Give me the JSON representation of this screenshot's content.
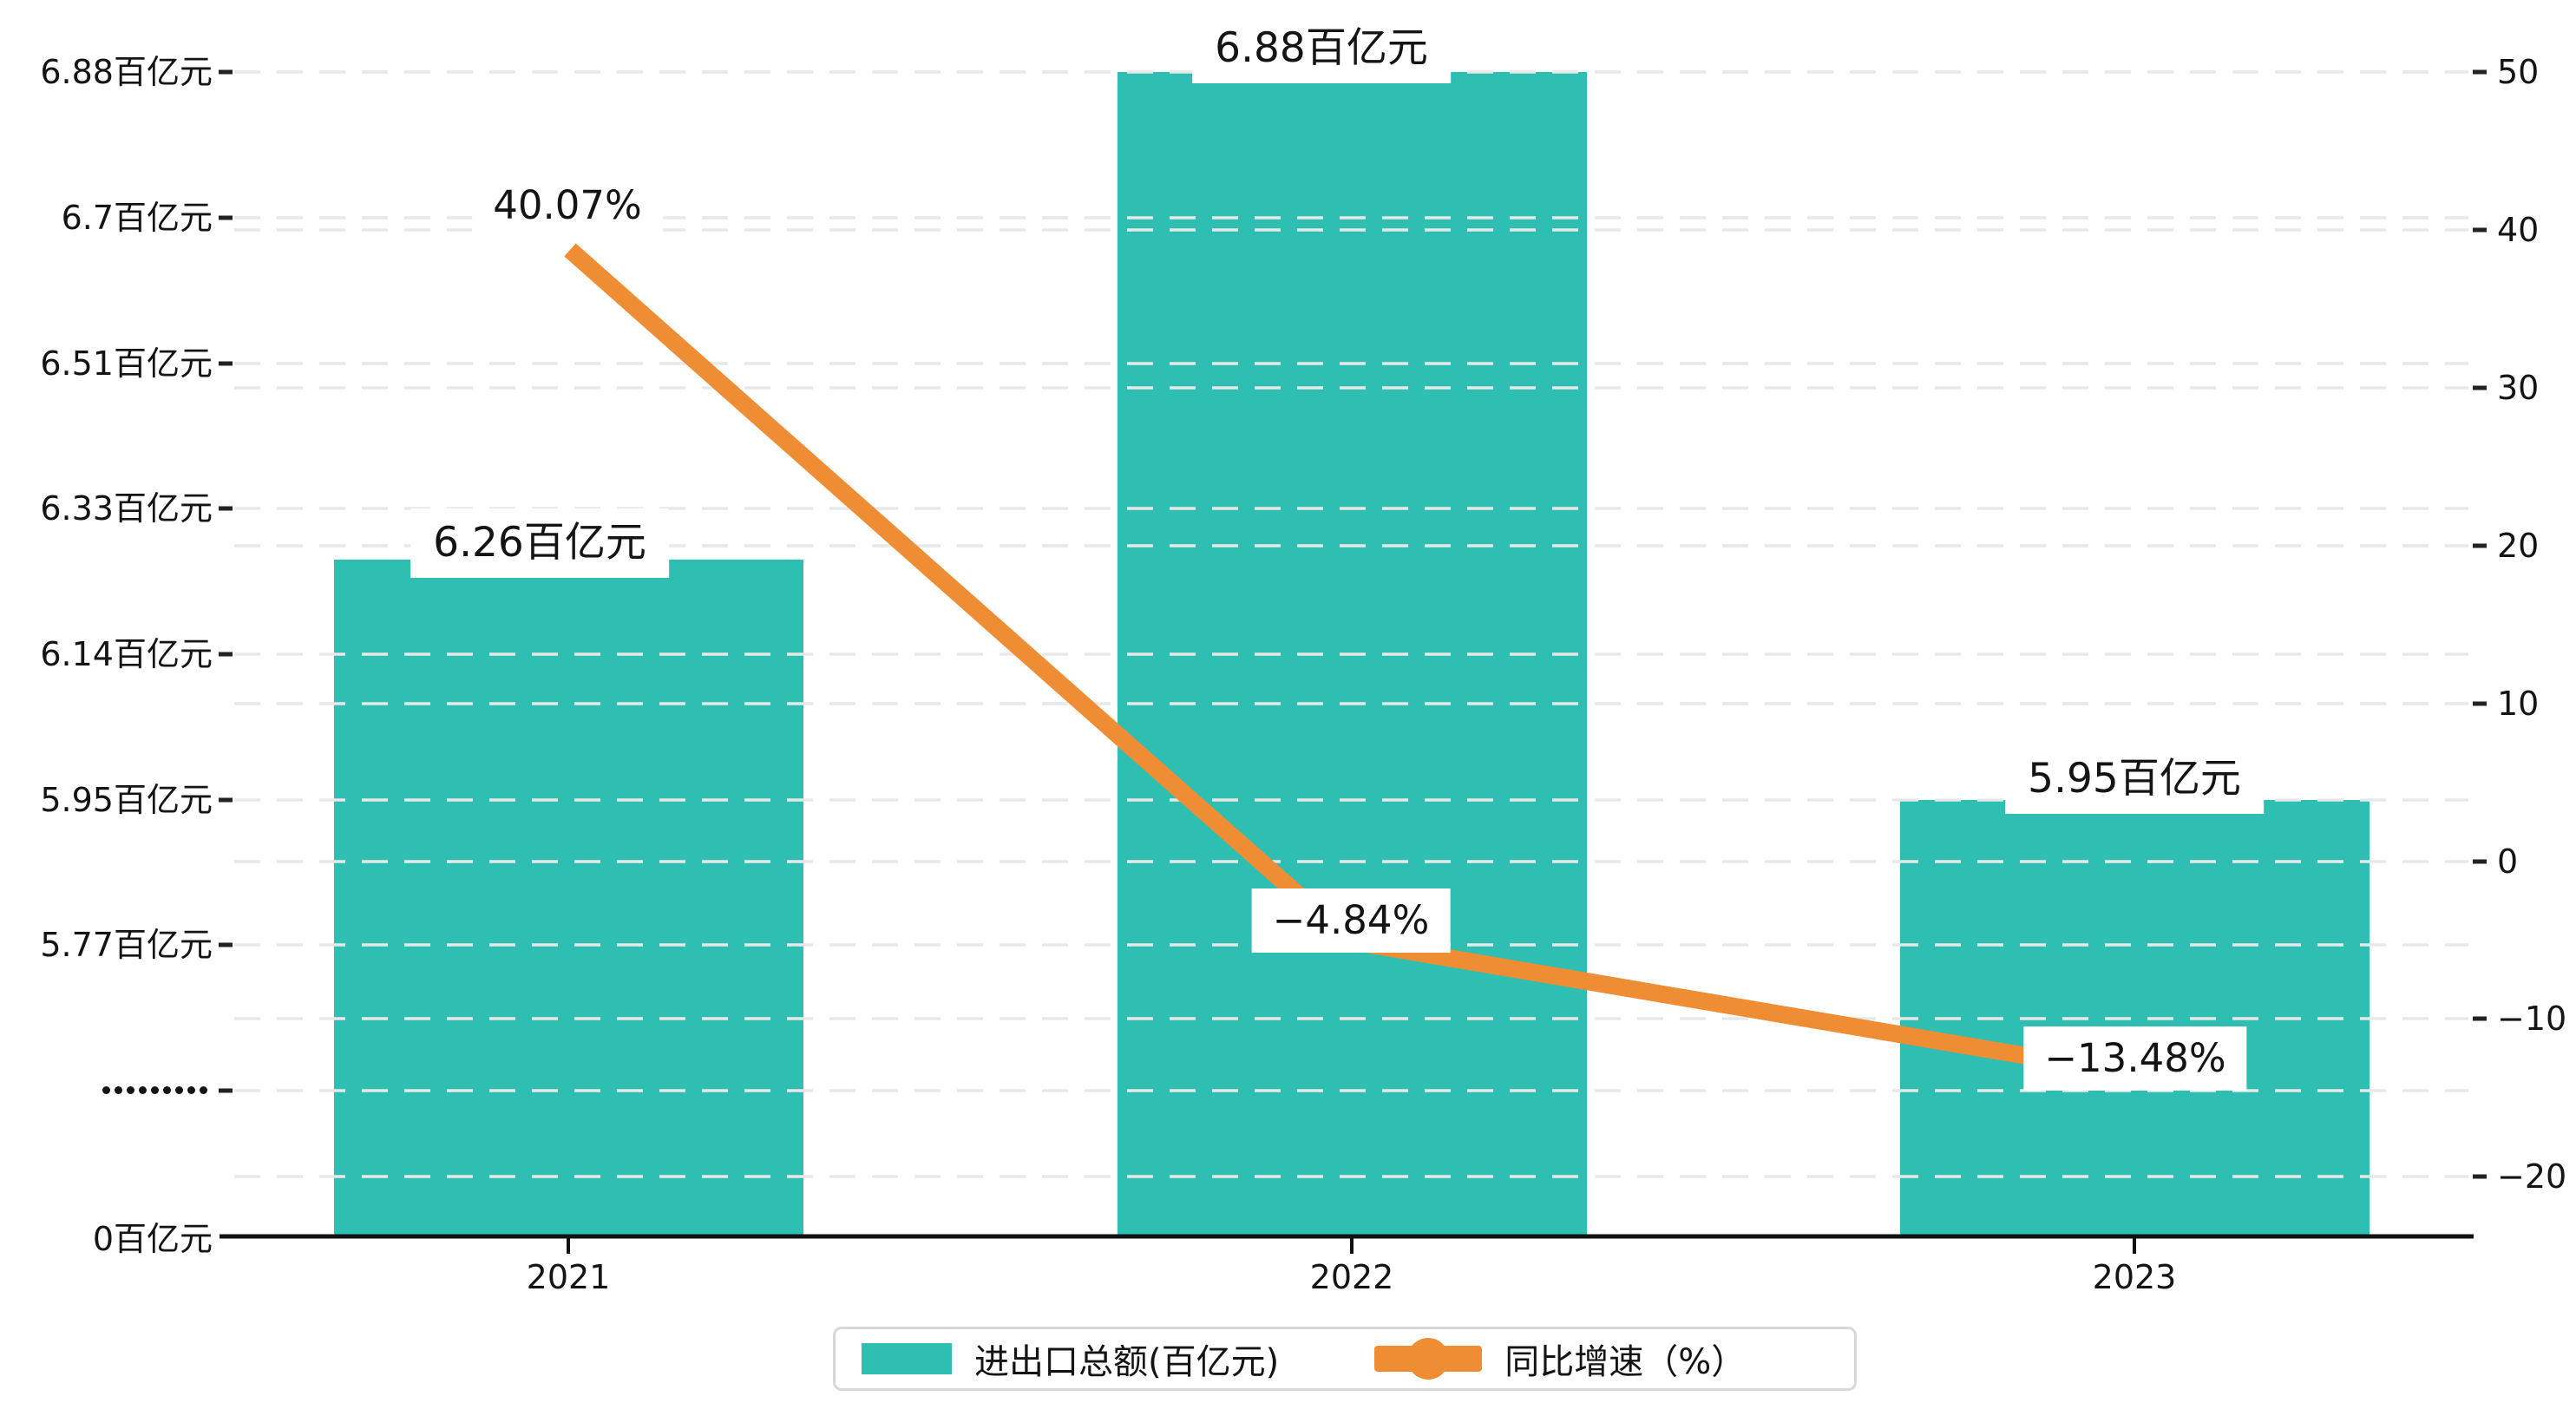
{
  "chart_data": {
    "type": "bar",
    "combo": "bar+line dual axis",
    "categories": [
      "2021",
      "2022",
      "2023"
    ],
    "series": [
      {
        "name": "进出口总额(百亿元)",
        "type": "bar",
        "values": [
          6.26,
          6.88,
          5.95
        ],
        "value_labels": [
          "6.26百亿元",
          "6.88百亿元",
          "5.95百亿元"
        ],
        "color": "#2EBFB2"
      },
      {
        "name": "同比增速（%）",
        "type": "line",
        "values": [
          40.07,
          -4.84,
          -13.48
        ],
        "value_labels": [
          "40.07%",
          "−4.84%",
          "−13.48%"
        ],
        "color": "#EF8D35"
      }
    ],
    "left_axis": {
      "unit": "百亿元",
      "broken_axis": true,
      "tick_labels": [
        "6.88百亿元",
        "6.7百亿元",
        "6.51百亿元",
        "6.33百亿元",
        "6.14百亿元",
        "5.95百亿元",
        "5.77百亿元",
        "·········",
        "0百亿元"
      ],
      "break_symbol": "·········",
      "zero_label": "0百亿元"
    },
    "right_axis": {
      "unit": "%",
      "tick_labels": [
        "50",
        "40",
        "30",
        "20",
        "10",
        "0",
        "−10",
        "−20"
      ],
      "range": [
        -20,
        50
      ]
    },
    "grid": "dashed horizontal gridlines for both axes",
    "legend_position": "bottom-center"
  },
  "legend": {
    "items": [
      {
        "label": "进出口总额(百亿元)",
        "swatch": "bar"
      },
      {
        "label": "同比增速（%）",
        "swatch": "line"
      }
    ]
  },
  "colors": {
    "bar": "#2EBFB2",
    "line": "#EF8D35",
    "grid": "#e8e8e8",
    "axis": "#111111",
    "tick": "#222222",
    "text": "#141414",
    "label_bg": "#ffffff",
    "legend_border": "#d8d8d8"
  }
}
